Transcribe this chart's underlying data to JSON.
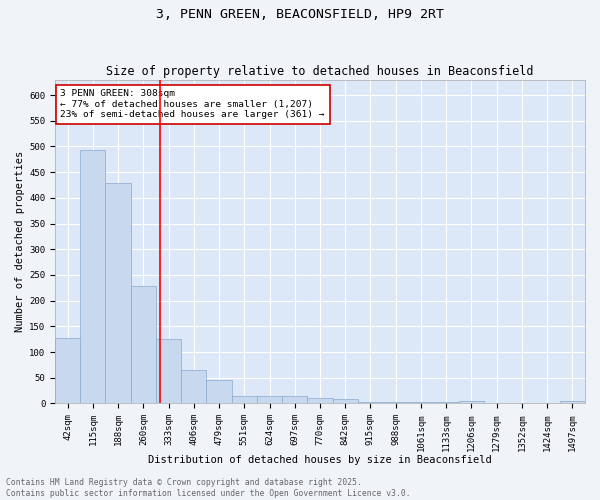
{
  "title": "3, PENN GREEN, BEACONSFIELD, HP9 2RT",
  "subtitle": "Size of property relative to detached houses in Beaconsfield",
  "xlabel": "Distribution of detached houses by size in Beaconsfield",
  "ylabel": "Number of detached properties",
  "bar_color": "#c8d8ee",
  "bar_edge_color": "#8aaace",
  "background_color": "#dce8f8",
  "grid_color": "#ffffff",
  "fig_background": "#f0f4f8",
  "categories": [
    "42sqm",
    "115sqm",
    "188sqm",
    "260sqm",
    "333sqm",
    "406sqm",
    "479sqm",
    "551sqm",
    "624sqm",
    "697sqm",
    "770sqm",
    "842sqm",
    "915sqm",
    "988sqm",
    "1061sqm",
    "1133sqm",
    "1206sqm",
    "1279sqm",
    "1352sqm",
    "1424sqm",
    "1497sqm"
  ],
  "values": [
    128,
    493,
    428,
    228,
    125,
    65,
    46,
    14,
    14,
    14,
    10,
    9,
    2,
    2,
    2,
    2,
    5,
    0,
    0,
    0,
    5
  ],
  "red_line_x": 3.67,
  "annotation_text": "3 PENN GREEN: 308sqm\n← 77% of detached houses are smaller (1,207)\n23% of semi-detached houses are larger (361) →",
  "annotation_box_color": "#ffffff",
  "annotation_box_edge_color": "#cc0000",
  "ylim": [
    0,
    630
  ],
  "yticks": [
    0,
    50,
    100,
    150,
    200,
    250,
    300,
    350,
    400,
    450,
    500,
    550,
    600
  ],
  "footer_text": "Contains HM Land Registry data © Crown copyright and database right 2025.\nContains public sector information licensed under the Open Government Licence v3.0.",
  "title_fontsize": 9.5,
  "subtitle_fontsize": 8.5,
  "axis_label_fontsize": 7.5,
  "tick_fontsize": 6.5,
  "annotation_fontsize": 6.8,
  "footer_fontsize": 5.8
}
